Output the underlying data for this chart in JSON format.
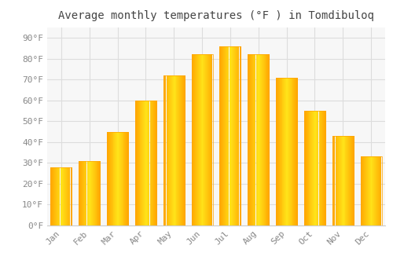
{
  "months": [
    "Jan",
    "Feb",
    "Mar",
    "Apr",
    "May",
    "Jun",
    "Jul",
    "Aug",
    "Sep",
    "Oct",
    "Nov",
    "Dec"
  ],
  "temps": [
    28,
    31,
    45,
    60,
    72,
    82,
    86,
    82,
    71,
    55,
    43,
    33
  ],
  "bar_color_center": "#FFD700",
  "bar_color_edge": "#FFA500",
  "title": "Average monthly temperatures (°F ) in Tomdibuloq",
  "ylabel_ticks": [
    0,
    10,
    20,
    30,
    40,
    50,
    60,
    70,
    80,
    90
  ],
  "ylim": [
    0,
    95
  ],
  "background_color": "#ffffff",
  "plot_bg_color": "#f7f7f7",
  "grid_color": "#dddddd",
  "title_fontsize": 10,
  "tick_fontsize": 8,
  "tick_color": "#888888",
  "title_color": "#444444",
  "bar_width": 0.75
}
